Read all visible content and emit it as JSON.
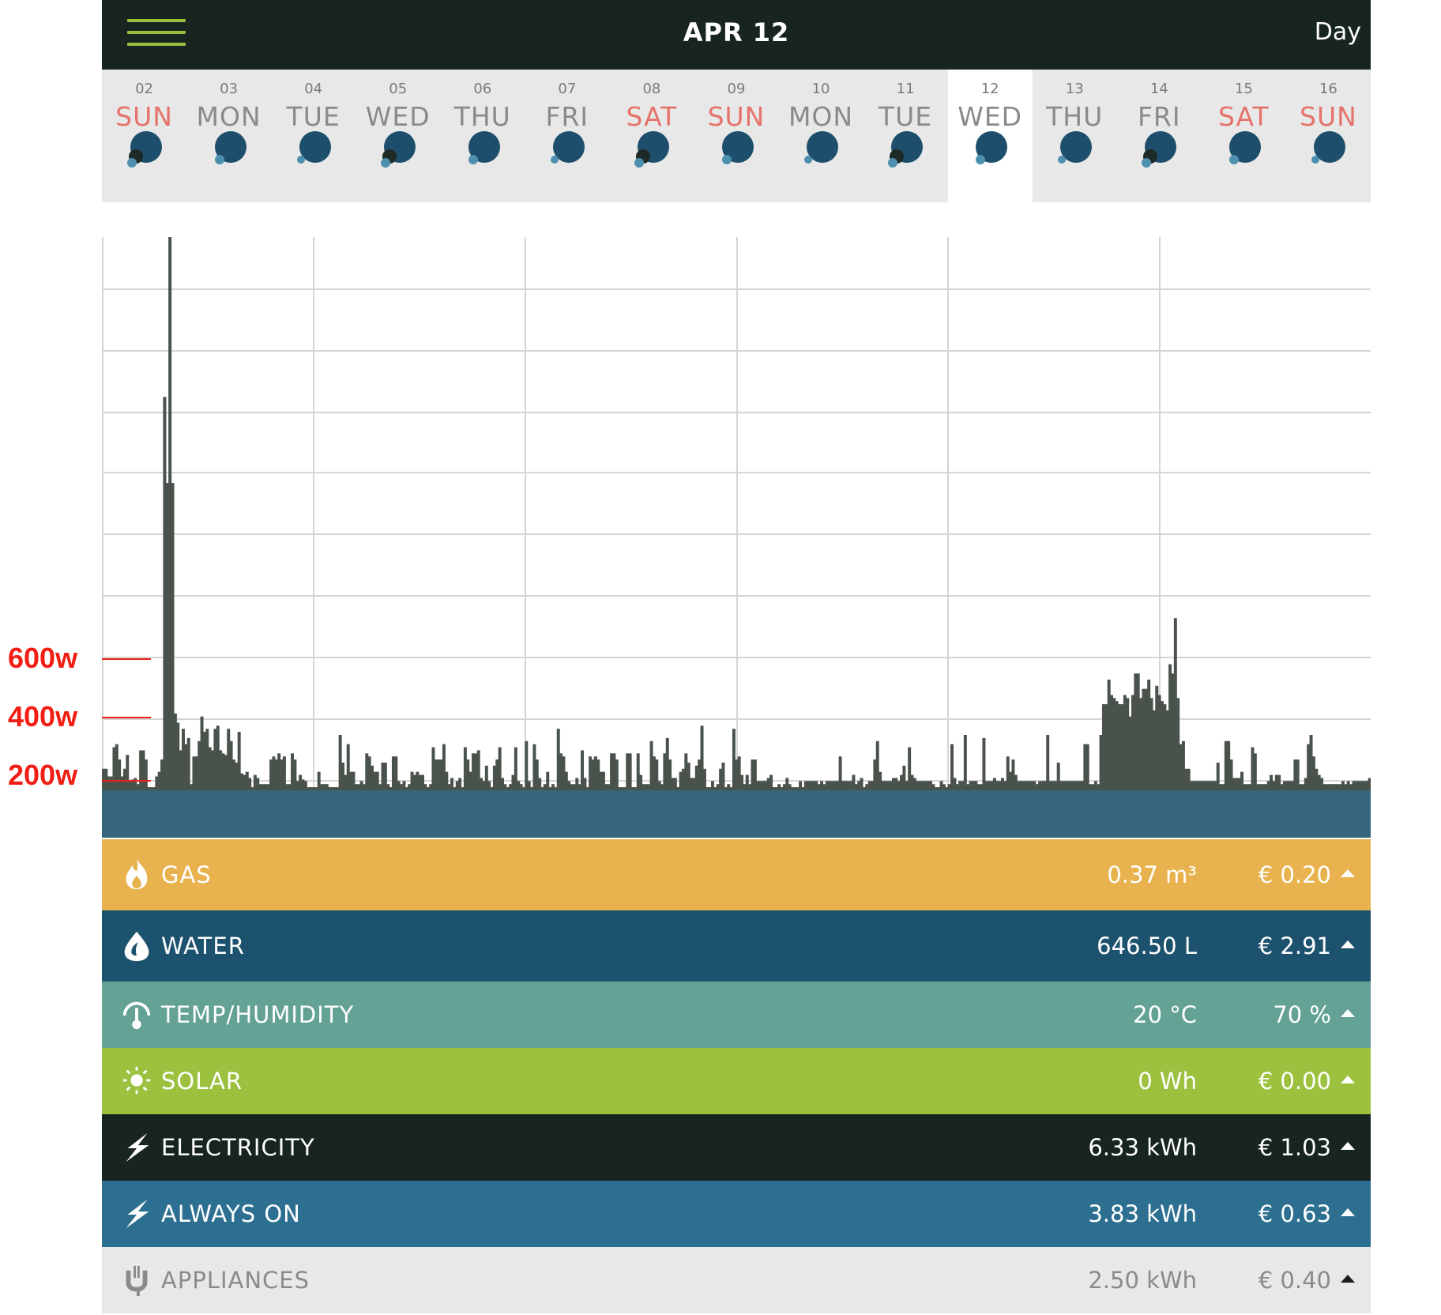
{
  "header": {
    "menu_icon": "hamburger-menu-icon",
    "title": "APR 12",
    "range_label": "Day"
  },
  "days": [
    {
      "num": "02",
      "name": "SUN",
      "weekend": true
    },
    {
      "num": "03",
      "name": "MON",
      "weekend": false
    },
    {
      "num": "04",
      "name": "TUE",
      "weekend": false
    },
    {
      "num": "05",
      "name": "WED",
      "weekend": false
    },
    {
      "num": "06",
      "name": "THU",
      "weekend": false
    },
    {
      "num": "07",
      "name": "FRI",
      "weekend": false
    },
    {
      "num": "08",
      "name": "SAT",
      "weekend": true
    },
    {
      "num": "09",
      "name": "SUN",
      "weekend": true
    },
    {
      "num": "10",
      "name": "MON",
      "weekend": false
    },
    {
      "num": "11",
      "name": "TUE",
      "weekend": false
    },
    {
      "num": "12",
      "name": "WED",
      "weekend": false,
      "active": true
    },
    {
      "num": "13",
      "name": "THU",
      "weekend": false
    },
    {
      "num": "14",
      "name": "FRI",
      "weekend": false
    },
    {
      "num": "15",
      "name": "SAT",
      "weekend": true
    },
    {
      "num": "16",
      "name": "SUN",
      "weekend": true
    }
  ],
  "annotations": {
    "y600": "600w",
    "y400": "400w",
    "y200": "200w"
  },
  "chart_data": {
    "type": "bar",
    "ylabel": "",
    "ylim": [
      0,
      1800
    ],
    "y_annotations": [
      600,
      400,
      200
    ],
    "grid": true,
    "bar_color": "#4a524c",
    "base_band_color": "#36667c",
    "values": [
      70,
      70,
      45,
      45,
      140,
      150,
      100,
      45,
      70,
      115,
      30,
      35,
      40,
      20,
      130,
      130,
      100,
      10,
      10,
      10,
      45,
      60,
      100,
      1280,
      1000,
      1800,
      1000,
      250,
      220,
      130,
      200,
      150,
      170,
      20,
      110,
      110,
      160,
      240,
      190,
      200,
      140,
      130,
      200,
      210,
      130,
      120,
      115,
      200,
      160,
      100,
      90,
      190,
      55,
      50,
      60,
      40,
      10,
      50,
      40,
      20,
      20,
      20,
      20,
      100,
      110,
      100,
      120,
      100,
      110,
      20,
      20,
      120,
      100,
      30,
      50,
      35,
      30,
      10,
      10,
      10,
      10,
      60,
      20,
      20,
      20,
      10,
      10,
      10,
      10,
      180,
      90,
      50,
      150,
      60,
      60,
      20,
      20,
      30,
      20,
      120,
      110,
      80,
      60,
      60,
      20,
      90,
      90,
      20,
      10,
      110,
      110,
      30,
      20,
      30,
      10,
      20,
      60,
      50,
      60,
      50,
      50,
      20,
      10,
      20,
      140,
      100,
      100,
      100,
      150,
      60,
      20,
      40,
      10,
      30,
      40,
      10,
      140,
      100,
      60,
      120,
      120,
      130,
      40,
      30,
      80,
      30,
      10,
      80,
      100,
      140,
      40,
      20,
      10,
      20,
      50,
      140,
      30,
      20,
      10,
      160,
      30,
      10,
      150,
      100,
      40,
      10,
      20,
      60,
      10,
      20,
      10,
      200,
      120,
      110,
      60,
      30,
      20,
      20,
      40,
      20,
      130,
      40,
      10,
      110,
      100,
      110,
      100,
      60,
      60,
      20,
      20,
      120,
      120,
      100,
      10,
      10,
      10,
      120,
      120,
      10,
      10,
      120,
      50,
      20,
      20,
      20,
      160,
      110,
      100,
      30,
      20,
      120,
      170,
      100,
      40,
      40,
      10,
      60,
      70,
      120,
      90,
      40,
      40,
      80,
      100,
      210,
      70,
      10,
      10,
      30,
      10,
      20,
      70,
      90,
      10,
      20,
      10,
      200,
      100,
      110,
      50,
      20,
      50,
      20,
      100,
      100,
      30,
      30,
      30,
      30,
      40,
      50,
      10,
      10,
      20,
      10,
      20,
      40,
      20,
      10,
      10,
      10,
      30,
      10,
      30,
      30,
      30,
      30,
      30,
      20,
      30,
      20,
      30,
      30,
      30,
      30,
      30,
      110,
      30,
      30,
      30,
      30,
      50,
      20,
      30,
      40,
      10,
      20,
      30,
      30,
      100,
      160,
      60,
      30,
      30,
      30,
      30,
      40,
      40,
      30,
      50,
      80,
      30,
      140,
      50,
      40,
      30,
      30,
      30,
      30,
      30,
      30,
      20,
      10,
      10,
      30,
      20,
      10,
      20,
      150,
      40,
      20,
      30,
      30,
      180,
      20,
      30,
      30,
      30,
      20,
      20,
      170,
      30,
      30,
      30,
      40,
      30,
      30,
      40,
      30,
      110,
      60,
      100,
      50,
      30,
      30,
      30,
      30,
      30,
      30,
      30,
      20,
      30,
      30,
      30,
      180,
      30,
      30,
      30,
      90,
      30,
      30,
      30,
      30,
      30,
      30,
      30,
      30,
      30,
      150,
      150,
      20,
      20,
      30,
      20,
      180,
      280,
      280,
      360,
      310,
      300,
      290,
      280,
      280,
      310,
      300,
      240,
      310,
      380,
      380,
      300,
      330,
      330,
      360,
      300,
      260,
      340,
      310,
      290,
      280,
      260,
      410,
      380,
      560,
      300,
      150,
      160,
      70,
      70,
      30,
      30,
      30,
      30,
      30,
      30,
      30,
      30,
      30,
      30,
      90,
      20,
      20,
      160,
      160,
      100,
      40,
      40,
      40,
      60,
      20,
      20,
      20,
      140,
      120,
      20,
      20,
      20,
      20,
      30,
      50,
      30,
      50,
      50,
      20,
      30,
      30,
      30,
      30,
      100,
      100,
      20,
      20,
      40,
      150,
      180,
      110,
      70,
      50,
      40,
      20,
      20,
      20,
      20,
      20,
      20,
      20,
      30,
      20,
      30,
      20,
      30,
      30,
      30,
      30,
      30,
      30,
      40
    ]
  },
  "rows": [
    {
      "id": "gas",
      "label": "GAS",
      "value": "0.37 m³",
      "cost": "€ 0.20",
      "color": "#e8b34e",
      "icon": "flame-icon"
    },
    {
      "id": "water",
      "label": "WATER",
      "value": "646.50 L",
      "cost": "€ 2.91",
      "color": "#1d526e",
      "icon": "water-drop-icon"
    },
    {
      "id": "temp",
      "label": "TEMP/HUMIDITY",
      "value": "20 °C",
      "cost": "70 %",
      "color": "#63a294",
      "icon": "thermometer-icon"
    },
    {
      "id": "solar",
      "label": "SOLAR",
      "value": "0 Wh",
      "cost": "€ 0.00",
      "color": "#9bc13f",
      "icon": "sun-icon"
    },
    {
      "id": "electricity",
      "label": "ELECTRICITY",
      "value": "6.33 kWh",
      "cost": "€ 1.03",
      "color": "#172420",
      "icon": "lightning-icon"
    },
    {
      "id": "always_on",
      "label": "ALWAYS ON",
      "value": "3.83 kWh",
      "cost": "€ 0.63",
      "color": "#2d6f90",
      "icon": "lightning-icon"
    },
    {
      "id": "appliances",
      "label": "APPLIANCES",
      "value": "2.50 kWh",
      "cost": "€ 0.40",
      "color": "#e8e8e8",
      "icon": "plug-icon",
      "dark_text": true
    }
  ]
}
